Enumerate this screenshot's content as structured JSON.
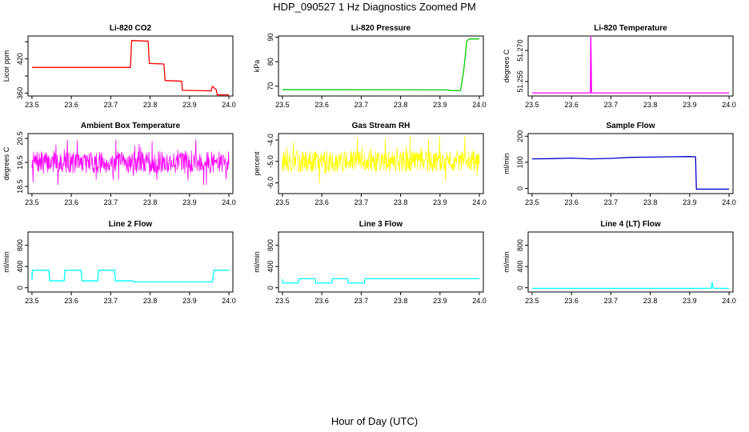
{
  "title": "HDP_090527  1 Hz Diagnostics Zoomed PM",
  "xlabel": "Hour of Day (UTC)",
  "chart_data": [
    {
      "type": "line",
      "title": "Li-820 CO2",
      "ylabel": "Licor ppm",
      "color": "#ff0000",
      "xlim": [
        23.49,
        24.01
      ],
      "ylim": [
        355,
        460
      ],
      "xticks": [
        "23.5",
        "23.6",
        "23.7",
        "23.8",
        "23.9",
        "24.0"
      ],
      "yticks": [
        "360",
        "",
        "420",
        ""
      ],
      "ytick_values": [
        360,
        390,
        420,
        450
      ],
      "x": [
        23.5,
        23.75,
        23.753,
        23.795,
        23.798,
        23.835,
        23.838,
        23.88,
        23.882,
        23.955,
        23.958,
        23.968,
        23.97,
        24.0
      ],
      "y": [
        405,
        405,
        452,
        451,
        412,
        411,
        382,
        381,
        365,
        364,
        372,
        366,
        357,
        357
      ]
    },
    {
      "type": "line",
      "title": "Li-820 Pressure",
      "ylabel": "kPa",
      "color": "#00cc00",
      "xlim": [
        23.49,
        24.01
      ],
      "ylim": [
        66,
        90.5
      ],
      "xticks": [
        "23.5",
        "23.6",
        "23.7",
        "23.8",
        "23.9",
        "24.0"
      ],
      "yticks": [
        "70",
        "80",
        "90"
      ],
      "ytick_values": [
        70,
        80,
        90
      ],
      "x": [
        23.5,
        23.92,
        23.925,
        23.952,
        23.96,
        23.968,
        23.975,
        24.0
      ],
      "y": [
        68.6,
        68.5,
        68.2,
        68.2,
        76,
        88.5,
        89.3,
        89.3
      ]
    },
    {
      "type": "line",
      "title": "Li-820 Temperature",
      "ylabel": "degrees C",
      "color": "#ff00ff",
      "xlim": [
        23.49,
        24.01
      ],
      "ylim": [
        51.248,
        51.277
      ],
      "xticks": [
        "23.5",
        "23.6",
        "23.7",
        "23.8",
        "23.9",
        "24.0"
      ],
      "yticks": [
        "51.255",
        "51.270"
      ],
      "ytick_values": [
        51.255,
        51.27
      ],
      "x": [
        23.5,
        23.648,
        23.649,
        23.65,
        23.651,
        23.652,
        24.0
      ],
      "y": [
        51.2495,
        51.2495,
        51.277,
        51.266,
        51.2495,
        51.2495,
        51.2495
      ]
    },
    {
      "type": "line",
      "title": "Ambient Box Temperature",
      "ylabel": "degrees C",
      "color": "#ff00ff",
      "xlim": [
        23.49,
        24.01
      ],
      "ylim": [
        18.2,
        20.7
      ],
      "xticks": [
        "23.5",
        "23.6",
        "23.7",
        "23.8",
        "23.9",
        "24.0"
      ],
      "yticks": [
        "18.5",
        "19.5",
        "20.5"
      ],
      "ytick_values": [
        18.5,
        19.5,
        20.5
      ],
      "noise": {
        "center": 19.5,
        "amplitude": 0.45,
        "spike": 0.95,
        "n": 500,
        "seed": 7
      },
      "x": [
        23.5,
        24.0
      ],
      "y": [
        19.5,
        19.5
      ]
    },
    {
      "type": "line",
      "title": "Gas Stream RH",
      "ylabel": "percent",
      "color": "#ffff00",
      "xlim": [
        23.49,
        24.01
      ],
      "ylim": [
        -6.5,
        -3.7
      ],
      "xticks": [
        "23.5",
        "23.6",
        "23.7",
        "23.8",
        "23.9",
        "24.0"
      ],
      "yticks": [
        "-6.0",
        "-5.0",
        "-4.0"
      ],
      "ytick_values": [
        -6.0,
        -5.0,
        -4.0
      ],
      "noise": {
        "center": -5.0,
        "amplitude": 0.5,
        "spike": 1.2,
        "n": 500,
        "seed": 13
      },
      "x": [
        23.5,
        24.0
      ],
      "y": [
        -5.0,
        -5.0
      ]
    },
    {
      "type": "line",
      "title": "Sample Flow",
      "ylabel": "ml/min",
      "color": "#0000cc",
      "xlim": [
        23.49,
        24.01
      ],
      "ylim": [
        -20,
        210
      ],
      "xticks": [
        "23.5",
        "23.6",
        "23.7",
        "23.8",
        "23.9",
        "24.0"
      ],
      "yticks": [
        "0",
        "100",
        "200"
      ],
      "ytick_values": [
        0,
        100,
        200
      ],
      "x": [
        23.5,
        23.55,
        23.6,
        23.65,
        23.7,
        23.75,
        23.8,
        23.85,
        23.9,
        23.915,
        23.917,
        24.0
      ],
      "y": [
        113,
        114,
        116,
        113,
        115,
        119,
        120,
        121,
        122,
        121,
        -3,
        -3
      ]
    },
    {
      "type": "line",
      "title": "Line 2 Flow",
      "ylabel": "ml/min",
      "color": "#00ffff",
      "xlim": [
        23.49,
        24.01
      ],
      "ylim": [
        -80,
        1050
      ],
      "xticks": [
        "23.5",
        "23.6",
        "23.7",
        "23.8",
        "23.9",
        "24.0"
      ],
      "yticks": [
        "0",
        "400",
        "800"
      ],
      "ytick_values": [
        0,
        400,
        800
      ],
      "x": [
        23.5,
        23.501,
        23.543,
        23.545,
        23.582,
        23.584,
        23.625,
        23.627,
        23.667,
        23.669,
        23.71,
        23.712,
        23.755,
        23.76,
        23.958,
        23.962,
        24.0
      ],
      "y": [
        150,
        330,
        330,
        130,
        130,
        330,
        330,
        130,
        130,
        330,
        330,
        130,
        130,
        110,
        110,
        330,
        330
      ]
    },
    {
      "type": "line",
      "title": "Line 3 Flow",
      "ylabel": "ml/min",
      "color": "#00ffff",
      "xlim": [
        23.49,
        24.01
      ],
      "ylim": [
        -80,
        1050
      ],
      "xticks": [
        "23.5",
        "23.6",
        "23.7",
        "23.8",
        "23.9",
        "24.0"
      ],
      "yticks": [
        "0",
        "400",
        "800"
      ],
      "ytick_values": [
        0,
        400,
        800
      ],
      "x": [
        23.5,
        23.501,
        23.54,
        23.542,
        23.583,
        23.585,
        23.625,
        23.627,
        23.665,
        23.667,
        23.708,
        23.71,
        24.0
      ],
      "y": [
        160,
        90,
        90,
        170,
        170,
        90,
        90,
        170,
        170,
        90,
        90,
        170,
        170
      ]
    },
    {
      "type": "line",
      "title": "Line 4 (LT) Flow",
      "ylabel": "ml/min",
      "color": "#00ffff",
      "xlim": [
        23.49,
        24.01
      ],
      "ylim": [
        -80,
        1050
      ],
      "xticks": [
        "23.5",
        "23.6",
        "23.7",
        "23.8",
        "23.9",
        "24.0"
      ],
      "yticks": [
        "0",
        "400",
        "800"
      ],
      "ytick_values": [
        0,
        400,
        800
      ],
      "x": [
        23.5,
        23.95,
        23.955,
        23.957,
        23.96,
        23.962,
        24.0
      ],
      "y": [
        -10,
        -10,
        -5,
        100,
        -5,
        -10,
        -10
      ]
    }
  ]
}
